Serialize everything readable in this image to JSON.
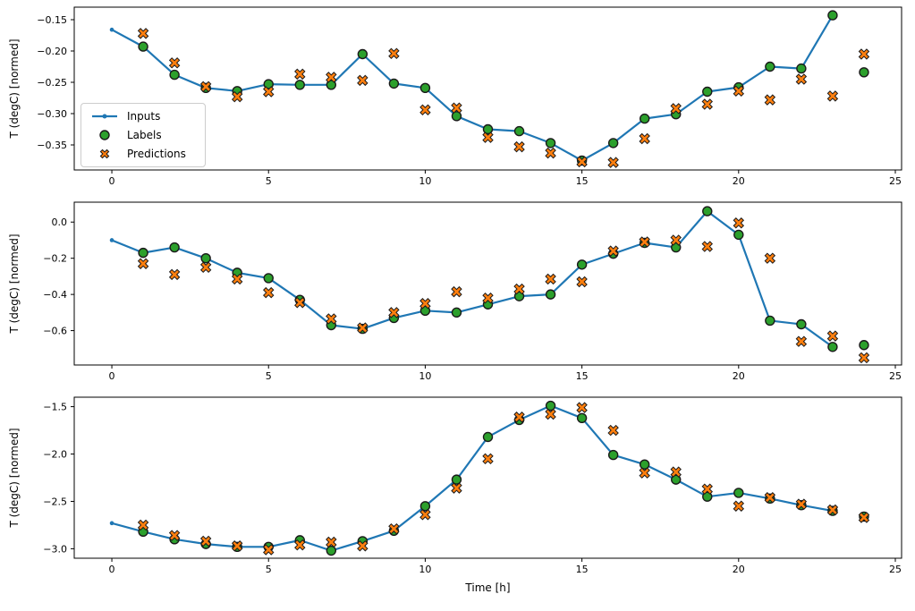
{
  "figure": {
    "xlabel": "Time [h]",
    "legend": {
      "items": [
        {
          "label": "Inputs",
          "marker": "line-with-dot",
          "color": "#1f77b4"
        },
        {
          "label": "Labels",
          "marker": "circle",
          "color": "#2ca02c"
        },
        {
          "label": "Predictions",
          "marker": "x-cross",
          "color": "#ff7f0e"
        }
      ]
    },
    "colors": {
      "inputs": "#1f77b4",
      "labels": "#2ca02c",
      "predictions": "#ff7f0e",
      "marker_edge": "#1a1a1a",
      "axis": "#000000"
    }
  },
  "chart_data": [
    {
      "type": "line",
      "title": "",
      "xlabel": "",
      "ylabel": "T (degC) [normed]",
      "xlim": [
        -1.2,
        25.2
      ],
      "ylim": [
        -0.39,
        -0.13
      ],
      "grid": false,
      "legend_position": "upper left inside first subplot",
      "xticks": {
        "values": [
          0,
          5,
          10,
          15,
          20,
          25
        ],
        "labels": [
          "0",
          "5",
          "10",
          "15",
          "20",
          "25"
        ]
      },
      "yticks": {
        "values": [
          -0.15,
          -0.2,
          -0.25,
          -0.3,
          -0.35
        ],
        "labels": [
          "−0.15",
          "−0.20",
          "−0.25",
          "−0.30",
          "−0.35"
        ]
      },
      "series": {
        "inputs": {
          "name": "Inputs",
          "x": [
            0,
            1,
            2,
            3,
            4,
            5,
            6,
            7,
            8,
            9,
            10,
            11,
            12,
            13,
            14,
            15,
            16,
            17,
            18,
            19,
            20,
            21,
            22,
            23
          ],
          "y": [
            -0.166,
            -0.193,
            -0.238,
            -0.259,
            -0.264,
            -0.253,
            -0.254,
            -0.254,
            -0.205,
            -0.252,
            -0.259,
            -0.304,
            -0.325,
            -0.328,
            -0.347,
            -0.375,
            -0.347,
            -0.308,
            -0.301,
            -0.265,
            -0.258,
            -0.225,
            -0.228,
            -0.143
          ]
        },
        "labels": {
          "name": "Labels",
          "x": [
            1,
            2,
            3,
            4,
            5,
            6,
            7,
            8,
            9,
            10,
            11,
            12,
            13,
            14,
            15,
            16,
            17,
            18,
            19,
            20,
            21,
            22,
            23,
            24
          ],
          "y": [
            -0.193,
            -0.238,
            -0.259,
            -0.264,
            -0.253,
            -0.254,
            -0.254,
            -0.205,
            -0.252,
            -0.259,
            -0.304,
            -0.325,
            -0.328,
            -0.347,
            -0.375,
            -0.347,
            -0.308,
            -0.301,
            -0.265,
            -0.258,
            -0.225,
            -0.228,
            -0.143,
            -0.234
          ]
        },
        "predictions": {
          "name": "Predictions",
          "x": [
            1,
            2,
            3,
            4,
            5,
            6,
            7,
            8,
            9,
            10,
            11,
            12,
            13,
            14,
            15,
            16,
            17,
            18,
            19,
            20,
            21,
            22,
            23,
            24
          ],
          "y": [
            -0.172,
            -0.219,
            -0.257,
            -0.273,
            -0.265,
            -0.237,
            -0.242,
            -0.247,
            -0.204,
            -0.294,
            -0.291,
            -0.338,
            -0.353,
            -0.363,
            -0.377,
            -0.378,
            -0.34,
            -0.292,
            -0.285,
            -0.264,
            -0.278,
            -0.245,
            -0.272,
            -0.205
          ]
        }
      }
    },
    {
      "type": "line",
      "title": "",
      "xlabel": "",
      "ylabel": "T (degC) [normed]",
      "xlim": [
        -1.2,
        25.2
      ],
      "ylim": [
        -0.79,
        0.11
      ],
      "grid": false,
      "xticks": {
        "values": [
          0,
          5,
          10,
          15,
          20,
          25
        ],
        "labels": [
          "0",
          "5",
          "10",
          "15",
          "20",
          "25"
        ]
      },
      "yticks": {
        "values": [
          0.0,
          -0.2,
          -0.4,
          -0.6
        ],
        "labels": [
          "0.0",
          "−0.2",
          "−0.4",
          "−0.6"
        ]
      },
      "series": {
        "inputs": {
          "name": "Inputs",
          "x": [
            0,
            1,
            2,
            3,
            4,
            5,
            6,
            7,
            8,
            9,
            10,
            11,
            12,
            13,
            14,
            15,
            16,
            17,
            18,
            19,
            20,
            21,
            22,
            23
          ],
          "y": [
            -0.1,
            -0.17,
            -0.14,
            -0.2,
            -0.28,
            -0.31,
            -0.43,
            -0.57,
            -0.59,
            -0.53,
            -0.49,
            -0.5,
            -0.455,
            -0.41,
            -0.4,
            -0.235,
            -0.175,
            -0.115,
            -0.14,
            0.06,
            -0.07,
            -0.545,
            -0.565,
            -0.69
          ]
        },
        "labels": {
          "name": "Labels",
          "x": [
            1,
            2,
            3,
            4,
            5,
            6,
            7,
            8,
            9,
            10,
            11,
            12,
            13,
            14,
            15,
            16,
            17,
            18,
            19,
            20,
            21,
            22,
            23,
            24
          ],
          "y": [
            -0.17,
            -0.14,
            -0.2,
            -0.28,
            -0.31,
            -0.43,
            -0.57,
            -0.59,
            -0.53,
            -0.49,
            -0.5,
            -0.455,
            -0.41,
            -0.4,
            -0.235,
            -0.175,
            -0.115,
            -0.14,
            0.06,
            -0.07,
            -0.545,
            -0.565,
            -0.69,
            -0.68
          ]
        },
        "predictions": {
          "name": "Predictions",
          "x": [
            1,
            2,
            3,
            4,
            5,
            6,
            7,
            8,
            9,
            10,
            11,
            12,
            13,
            14,
            15,
            16,
            17,
            18,
            19,
            20,
            21,
            22,
            23,
            24
          ],
          "y": [
            -0.23,
            -0.29,
            -0.25,
            -0.315,
            -0.39,
            -0.445,
            -0.535,
            -0.585,
            -0.5,
            -0.45,
            -0.385,
            -0.42,
            -0.37,
            -0.315,
            -0.33,
            -0.16,
            -0.11,
            -0.1,
            -0.135,
            -0.005,
            -0.2,
            -0.66,
            -0.63,
            -0.75
          ]
        }
      }
    },
    {
      "type": "line",
      "title": "",
      "xlabel": "Time [h]",
      "ylabel": "T (degC) [normed]",
      "xlim": [
        -1.2,
        25.2
      ],
      "ylim": [
        -3.1,
        -1.4
      ],
      "grid": false,
      "xticks": {
        "values": [
          0,
          5,
          10,
          15,
          20,
          25
        ],
        "labels": [
          "0",
          "5",
          "10",
          "15",
          "20",
          "25"
        ]
      },
      "yticks": {
        "values": [
          -1.5,
          -2.0,
          -2.5,
          -3.0
        ],
        "labels": [
          "−1.5",
          "−2.0",
          "−2.5",
          "−3.0"
        ]
      },
      "series": {
        "inputs": {
          "name": "Inputs",
          "x": [
            0,
            1,
            2,
            3,
            4,
            5,
            6,
            7,
            8,
            9,
            10,
            11,
            12,
            13,
            14,
            15,
            16,
            17,
            18,
            19,
            20,
            21,
            22,
            23
          ],
          "y": [
            -2.73,
            -2.82,
            -2.9,
            -2.95,
            -2.98,
            -2.98,
            -2.91,
            -3.02,
            -2.92,
            -2.81,
            -2.55,
            -2.27,
            -1.82,
            -1.64,
            -1.49,
            -1.62,
            -2.01,
            -2.11,
            -2.27,
            -2.45,
            -2.41,
            -2.47,
            -2.54,
            -2.6
          ]
        },
        "labels": {
          "name": "Labels",
          "x": [
            1,
            2,
            3,
            4,
            5,
            6,
            7,
            8,
            9,
            10,
            11,
            12,
            13,
            14,
            15,
            16,
            17,
            18,
            19,
            20,
            21,
            22,
            23,
            24
          ],
          "y": [
            -2.82,
            -2.9,
            -2.95,
            -2.98,
            -2.98,
            -2.91,
            -3.02,
            -2.92,
            -2.81,
            -2.55,
            -2.27,
            -1.82,
            -1.64,
            -1.49,
            -1.62,
            -2.01,
            -2.11,
            -2.27,
            -2.45,
            -2.41,
            -2.47,
            -2.54,
            -2.6,
            -2.66
          ]
        },
        "predictions": {
          "name": "Predictions",
          "x": [
            1,
            2,
            3,
            4,
            5,
            6,
            7,
            8,
            9,
            10,
            11,
            12,
            13,
            14,
            15,
            16,
            17,
            18,
            19,
            20,
            21,
            22,
            23,
            24
          ],
          "y": [
            -2.75,
            -2.86,
            -2.92,
            -2.97,
            -3.01,
            -2.96,
            -2.93,
            -2.97,
            -2.79,
            -2.64,
            -2.36,
            -2.05,
            -1.61,
            -1.58,
            -1.51,
            -1.75,
            -2.2,
            -2.19,
            -2.37,
            -2.55,
            -2.46,
            -2.53,
            -2.59,
            -2.67
          ]
        }
      }
    }
  ]
}
